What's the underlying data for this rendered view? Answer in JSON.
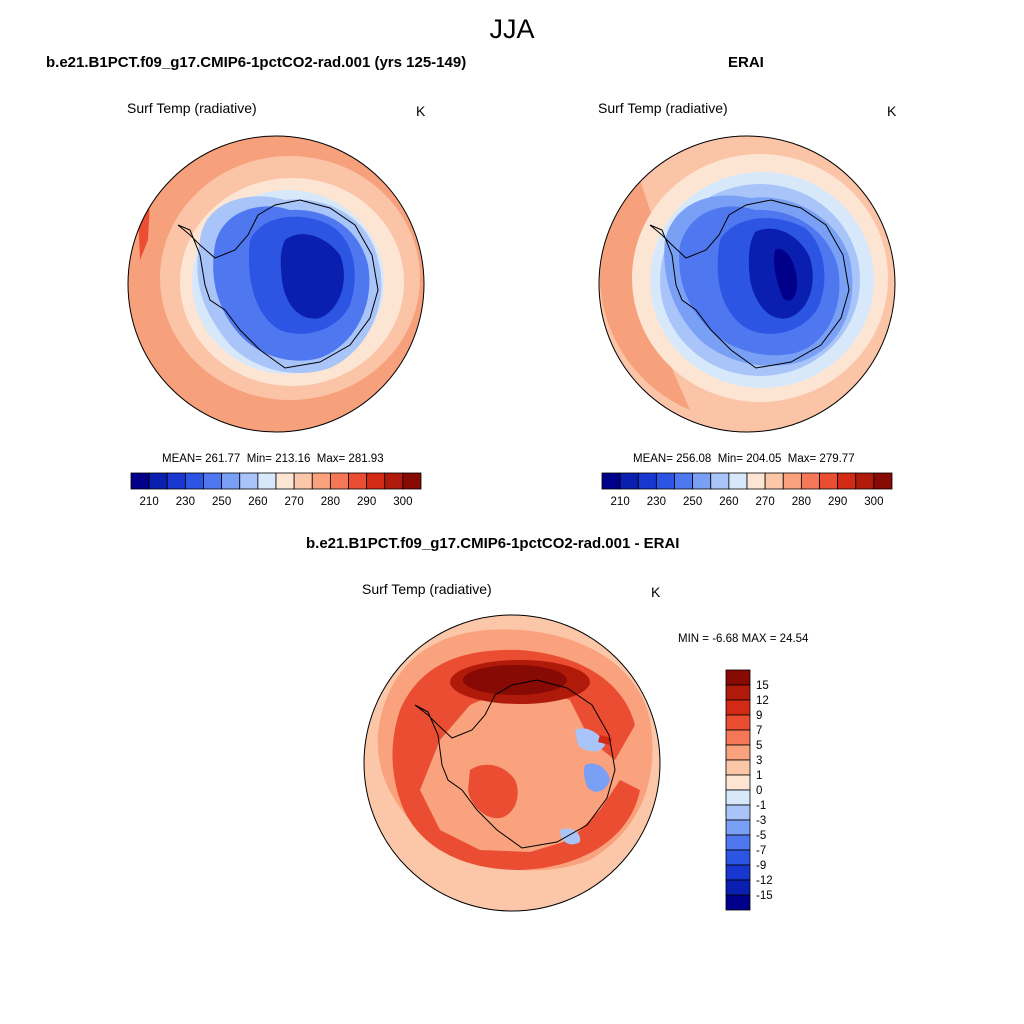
{
  "header": {
    "title": "JJA"
  },
  "panels": [
    {
      "title": "b.e21.B1PCT.f09_g17.CMIP6-1pctCO2-rad.001 (yrs 125-149)",
      "variable": "Surf Temp (radiative)",
      "units": "K",
      "stats": {
        "mean": "261.77",
        "min": "213.16",
        "max": "281.93"
      }
    },
    {
      "title": "ERAI",
      "variable": "Surf Temp (radiative)",
      "units": "K",
      "stats": {
        "mean": "256.08",
        "min": "204.05",
        "max": "279.77"
      }
    },
    {
      "title": "b.e21.B1PCT.f09_g17.CMIP6-1pctCO2-rad.001 - ERAI",
      "variable": "Surf Temp (radiative)",
      "units": "K",
      "stats": {
        "min": "-6.68",
        "max": "24.54"
      }
    }
  ],
  "labels": {
    "mean": "MEAN=",
    "min": "Min=",
    "max": "Max=",
    "min_caps": "MIN =",
    "max_caps": "MAX ="
  },
  "colorbar_abs": {
    "colors": [
      "#00008b",
      "#0a1fb0",
      "#1737d0",
      "#2c55e4",
      "#4f78f0",
      "#7aa0f5",
      "#a8c4f8",
      "#d8e8fb",
      "#fde5d4",
      "#fcc7a8",
      "#f9a27d",
      "#f47858",
      "#ea4d32",
      "#d22a14",
      "#b01a0a",
      "#870a04"
    ],
    "tick_labels": [
      "210",
      "230",
      "250",
      "260",
      "270",
      "280",
      "290",
      "300"
    ]
  },
  "colorbar_diff": {
    "colors": [
      "#00008b",
      "#0a1fb0",
      "#1737d0",
      "#2c55e4",
      "#4f78f0",
      "#7aa0f5",
      "#a8c4f8",
      "#d8e8fb",
      "#fde5d4",
      "#fcc7a8",
      "#f9a27d",
      "#f47858",
      "#ea4d32",
      "#d22a14",
      "#b01a0a",
      "#870a04"
    ],
    "tick_labels": [
      "15",
      "12",
      "9",
      "7",
      "5",
      "3",
      "1",
      "0",
      "-1",
      "-3",
      "-5",
      "-7",
      "-9",
      "-12",
      "-15"
    ]
  }
}
